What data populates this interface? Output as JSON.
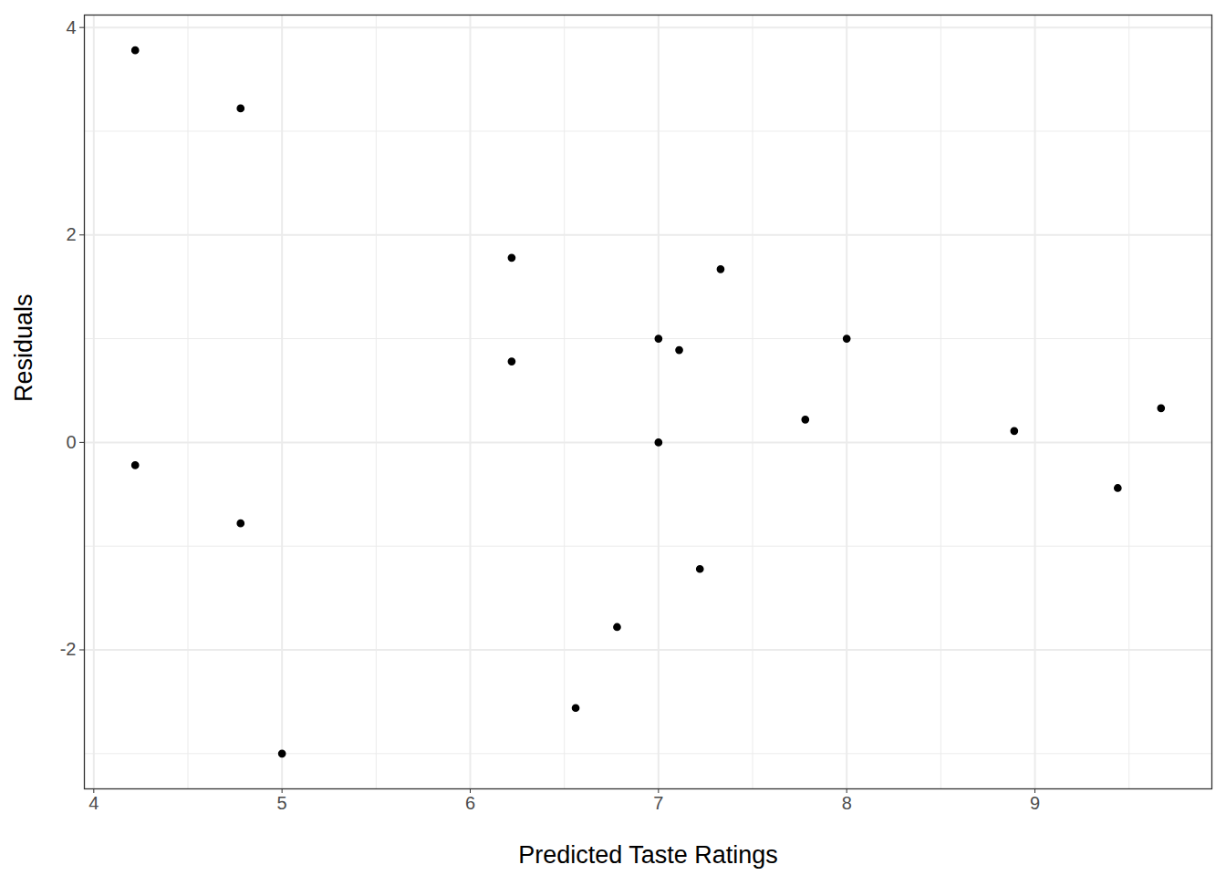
{
  "chart_data": {
    "type": "scatter",
    "x_label": "Predicted Taste Ratings",
    "y_label": "Residuals",
    "x": [
      4.22,
      4.78,
      4.22,
      4.78,
      5.0,
      6.22,
      6.22,
      6.56,
      6.78,
      7.0,
      7.0,
      7.11,
      7.22,
      7.33,
      7.78,
      8.0,
      8.89,
      9.44,
      9.67
    ],
    "values": [
      3.78,
      3.22,
      -0.22,
      -0.78,
      -3.0,
      1.78,
      0.78,
      -2.56,
      -1.78,
      1.0,
      0.0,
      0.89,
      -1.22,
      1.67,
      0.22,
      1.0,
      0.11,
      -0.44,
      0.33
    ],
    "color": "#000000",
    "marker": "circle",
    "xlim": [
      3.95,
      9.94
    ],
    "ylim": [
      -3.34,
      4.12
    ],
    "xticks": [
      4,
      5,
      6,
      7,
      8,
      9
    ],
    "yticks": [
      -2,
      0,
      2,
      4
    ],
    "grid": true
  }
}
